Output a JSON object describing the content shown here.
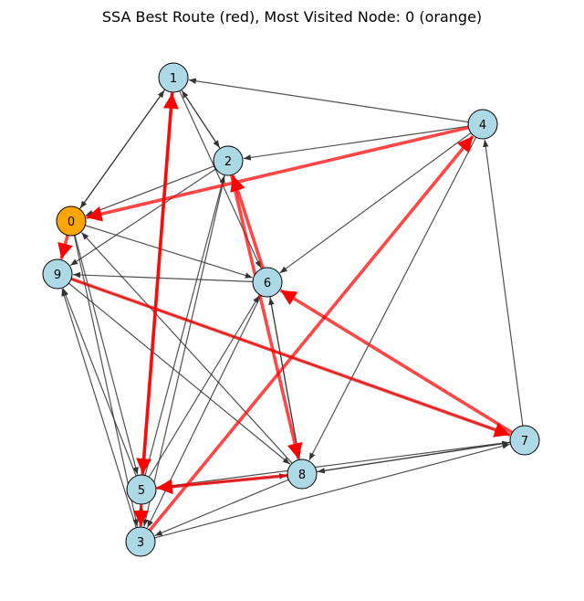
{
  "title": "SSA Best Route (red), Most Visited Node: 0 (orange)",
  "colors": {
    "node_default": "#add8e6",
    "node_highlight": "#ffa500",
    "node_stroke": "#000000",
    "edge": "#333333",
    "route": "#ff0000"
  },
  "graph": {
    "most_visited": "0",
    "nodes": [
      "0",
      "1",
      "2",
      "3",
      "4",
      "5",
      "6",
      "7",
      "8",
      "9"
    ],
    "edges": [
      [
        "1",
        "0"
      ],
      [
        "0",
        "1"
      ],
      [
        "1",
        "2"
      ],
      [
        "2",
        "1"
      ],
      [
        "4",
        "1"
      ],
      [
        "1",
        "5"
      ],
      [
        "1",
        "6"
      ],
      [
        "2",
        "0"
      ],
      [
        "4",
        "2"
      ],
      [
        "2",
        "9"
      ],
      [
        "5",
        "2"
      ],
      [
        "2",
        "3"
      ],
      [
        "0",
        "6"
      ],
      [
        "0",
        "3"
      ],
      [
        "8",
        "0"
      ],
      [
        "0",
        "5"
      ],
      [
        "6",
        "9"
      ],
      [
        "4",
        "6"
      ],
      [
        "7",
        "4"
      ],
      [
        "4",
        "8"
      ],
      [
        "6",
        "3"
      ],
      [
        "5",
        "6"
      ],
      [
        "8",
        "6"
      ],
      [
        "6",
        "8"
      ],
      [
        "9",
        "8"
      ],
      [
        "3",
        "9"
      ],
      [
        "5",
        "9"
      ],
      [
        "8",
        "5"
      ],
      [
        "5",
        "8"
      ],
      [
        "8",
        "7"
      ],
      [
        "7",
        "8"
      ],
      [
        "7",
        "5"
      ],
      [
        "3",
        "7"
      ],
      [
        "8",
        "3"
      ],
      [
        "3",
        "5"
      ],
      [
        "9",
        "7"
      ]
    ],
    "best_route": [
      "1",
      "5",
      "3",
      "4",
      "0",
      "9",
      "7",
      "6",
      "2",
      "8",
      "5",
      "1"
    ]
  }
}
